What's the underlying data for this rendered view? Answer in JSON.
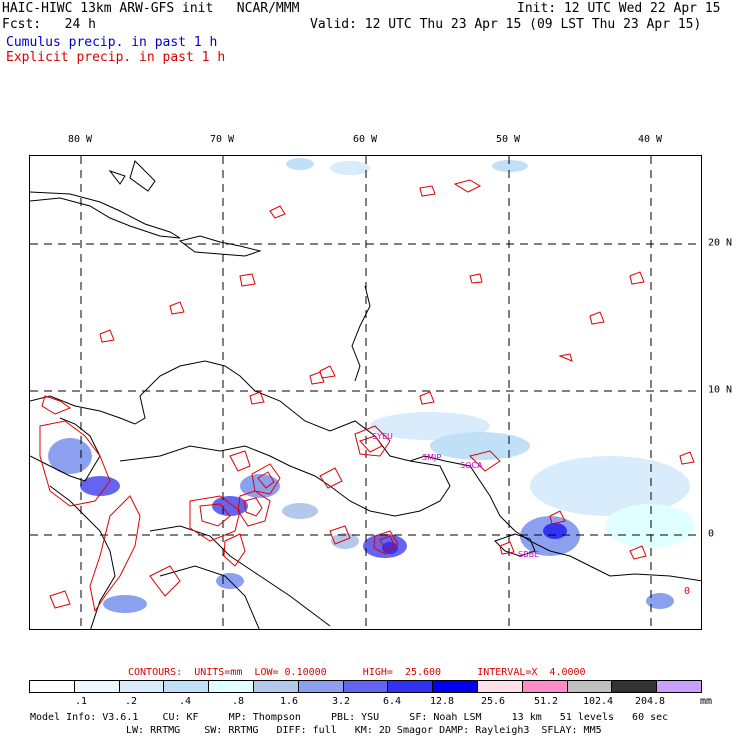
{
  "header": {
    "line1_left": "HAIC-HIWC 13km ARW-GFS init   NCAR/MMM",
    "line1_right": "Init: 12 UTC Wed 22 Apr 15",
    "line2_left": "Fcst:   24 h",
    "line2_right": "Valid: 12 UTC Thu 23 Apr 15 (09 LST Thu 23 Apr 15)",
    "legend_cumulus": "Cumulus precip. in past 1 h",
    "legend_explicit": "Explicit precip. in past 1 h"
  },
  "map": {
    "lon_labels": [
      "80 W",
      "70 W",
      "60 W",
      "50 W",
      "40 W"
    ],
    "lat_labels": [
      "20 N",
      "10 N",
      "0"
    ],
    "stations": [
      {
        "label": "SYEU"
      },
      {
        "label": "SMJP"
      },
      {
        "label": "SOCA"
      },
      {
        "label": "SBBE"
      }
    ],
    "contour_label": "0"
  },
  "contours_line": "CONTOURS:  UNITS=mm  LOW= 0.10000      HIGH=  25.600      INTERVAL=X  4.0000",
  "colorbar": {
    "colors": [
      "#ffffff",
      "#f0f8ff",
      "#d8ecfb",
      "#c0e0f8",
      "#e0ffff",
      "#b4c8ec",
      "#8ca0f0",
      "#6464f0",
      "#3232f5",
      "#0000f0",
      "#ffe0e8",
      "#ff8cc8",
      "#c0c0c0",
      "#333333",
      "#c8a0ff"
    ],
    "ticks": [
      ".1",
      ".2",
      ".4",
      ".8",
      "1.6",
      "3.2",
      "6.4",
      "12.8",
      "25.6",
      "51.2",
      "102.4",
      "204.8"
    ],
    "unit": "mm"
  },
  "footer": {
    "line1": "Model Info: V3.6.1    CU: KF     MP: Thompson     PBL: YSU     SF: Noah LSM     13 km   51 levels   60 sec",
    "line2": "LW: RRTMG    SW: RRTMG   DIFF: full   KM: 2D Smagor DAMP: Rayleigh3  SFLAY: MM5"
  }
}
